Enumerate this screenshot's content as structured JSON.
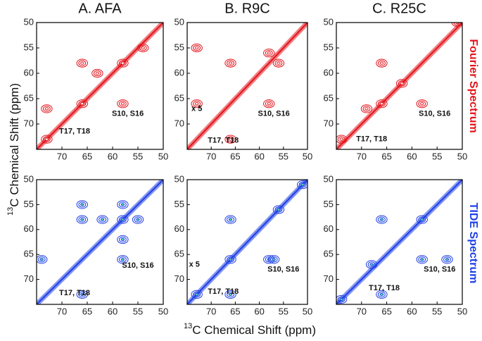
{
  "xlabel": {
    "superscript": "13",
    "text": "C Chemical Shift (ppm)"
  },
  "ylabel": {
    "superscript": "13",
    "text": "C Chemical Shift (ppm)"
  },
  "row_labels": [
    "Fourier Spectrum",
    "TIDE Spectrum"
  ],
  "chart_data": [
    {
      "type": "contour",
      "title": "A.  AFA",
      "color": "#e3141c",
      "xlim": [
        75,
        50
      ],
      "ylim": [
        50,
        75
      ],
      "xticks": [
        70,
        65,
        60,
        55,
        50
      ],
      "yticks": [
        50,
        55,
        60,
        65,
        70
      ],
      "peaks": {
        "x": [
          73,
          73,
          66,
          66,
          58,
          58,
          54,
          63
        ],
        "y": [
          67,
          73,
          66,
          58,
          66,
          58,
          55,
          60
        ]
      },
      "annotations": [
        "S10, S16",
        "T17, T18"
      ]
    },
    {
      "type": "contour",
      "title": "B.  R9C",
      "color": "#e3141c",
      "xlim": [
        75,
        50
      ],
      "ylim": [
        50,
        75
      ],
      "xticks": [
        70,
        65,
        60,
        55,
        50
      ],
      "yticks": [
        50,
        55,
        60,
        65,
        70
      ],
      "peaks": {
        "x": [
          73,
          66,
          66,
          58,
          56,
          73,
          58
        ],
        "y": [
          66,
          73,
          58,
          66,
          58,
          55,
          56
        ]
      },
      "annotations": [
        "x 5",
        "S10, S16",
        "T17, T18"
      ]
    },
    {
      "type": "contour",
      "title": "C.  R25C",
      "color": "#e3141c",
      "xlim": [
        75,
        50
      ],
      "ylim": [
        50,
        75
      ],
      "xticks": [
        70,
        65,
        60,
        55,
        50
      ],
      "yticks": [
        50,
        55,
        60,
        65,
        70
      ],
      "peaks": {
        "x": [
          74,
          66,
          66,
          58,
          69,
          51,
          62
        ],
        "y": [
          73,
          66,
          58,
          66,
          67,
          50,
          62
        ]
      },
      "annotations": [
        "S10, S16",
        "T17, T18"
      ]
    },
    {
      "type": "contour",
      "color": "#1f3fe6",
      "xlim": [
        75,
        50
      ],
      "ylim": [
        50,
        75
      ],
      "xticks": [
        70,
        65,
        60,
        55,
        50
      ],
      "yticks": [
        50,
        55,
        60,
        65,
        70
      ],
      "peaks": {
        "x": [
          74,
          66,
          66,
          58,
          58,
          62,
          58,
          66,
          55,
          58
        ],
        "y": [
          66,
          58,
          55,
          55,
          62,
          58,
          66,
          73,
          58,
          58
        ]
      },
      "annotations": [
        "S10, S16",
        "T17, T18"
      ]
    },
    {
      "type": "contour",
      "color": "#1f3fe6",
      "xlim": [
        75,
        50
      ],
      "ylim": [
        50,
        75
      ],
      "xticks": [
        70,
        65,
        60,
        55,
        50
      ],
      "yticks": [
        50,
        55,
        60,
        65,
        70
      ],
      "peaks": {
        "x": [
          66,
          66,
          58,
          57,
          56,
          73,
          66,
          51
        ],
        "y": [
          58,
          66,
          66,
          66,
          56,
          73,
          73,
          51
        ]
      },
      "annotations": [
        "x 5",
        "S10, S16",
        "T17, T18"
      ]
    },
    {
      "type": "contour",
      "color": "#1f3fe6",
      "xlim": [
        75,
        50
      ],
      "ylim": [
        50,
        75
      ],
      "xticks": [
        70,
        65,
        60,
        55,
        50
      ],
      "yticks": [
        50,
        55,
        60,
        65,
        70
      ],
      "peaks": {
        "x": [
          66,
          58,
          58,
          66,
          74,
          68,
          53
        ],
        "y": [
          58,
          66,
          58,
          73,
          74,
          67,
          66
        ]
      },
      "annotations": [
        "S10, S16",
        "T17, T18"
      ]
    }
  ]
}
